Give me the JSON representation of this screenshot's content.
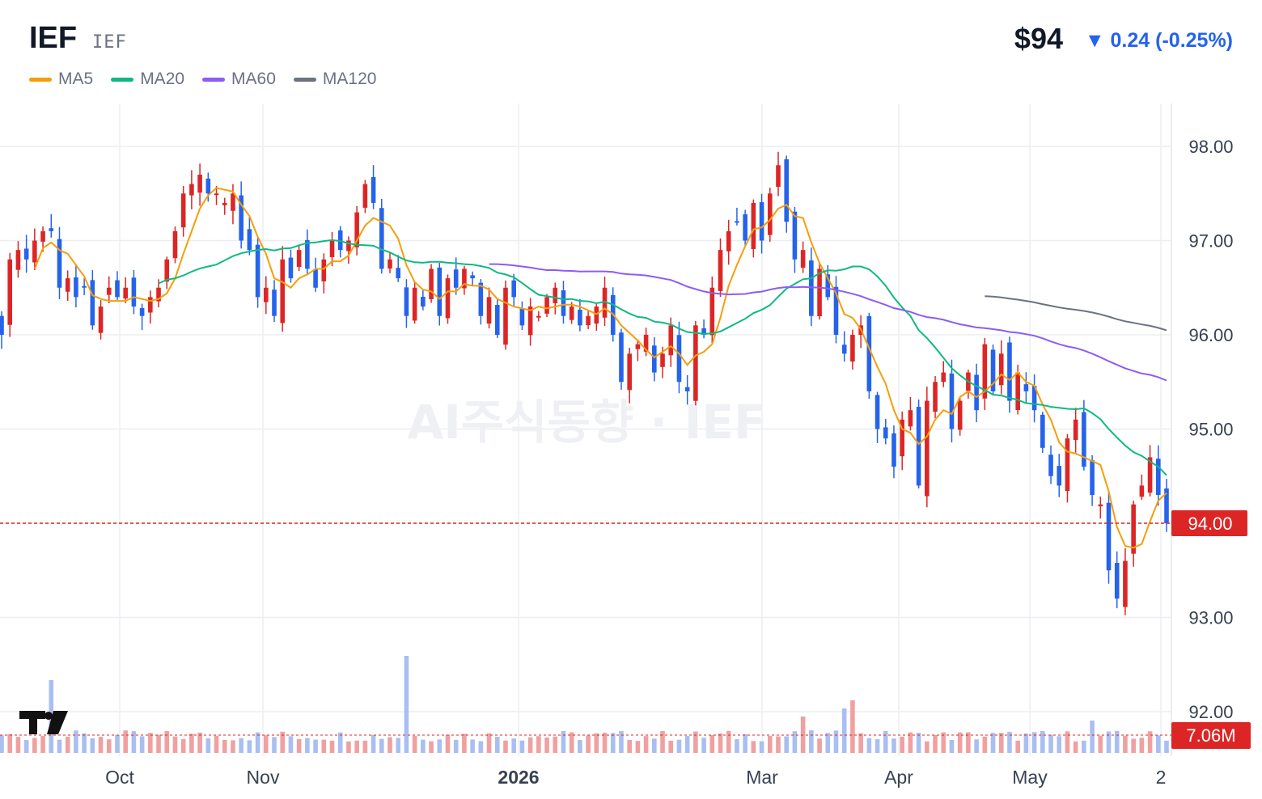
{
  "header": {
    "ticker": "IEF",
    "ticker_sub": "IEF",
    "price": "$94",
    "change": "▼ 0.24 (-0.25%)",
    "change_color": "#2563eb"
  },
  "legend": [
    {
      "label": "MA5",
      "color": "#f59e0b"
    },
    {
      "label": "MA20",
      "color": "#10b981"
    },
    {
      "label": "MA60",
      "color": "#8b5cf6"
    },
    {
      "label": "MA120",
      "color": "#6b7280"
    }
  ],
  "watermark": "AI주식동향 · IEF",
  "price_badge": "94.00",
  "volume_badge": "7.06M",
  "colors": {
    "up": "#dc2626",
    "down": "#2563eb",
    "up_vol": "#f0a0a0",
    "down_vol": "#a9bff2",
    "grid": "#eceef1"
  },
  "chart_data": {
    "type": "candlestick",
    "y_axis": {
      "min": 92,
      "max": 98,
      "ticks": [
        "92.00",
        "93.00",
        "94.00",
        "95.00",
        "96.00",
        "97.00",
        "98.00"
      ]
    },
    "x_ticks": [
      {
        "label": "Oct",
        "bold": false
      },
      {
        "label": "Nov",
        "bold": false
      },
      {
        "label": "2026",
        "bold": true
      },
      {
        "label": "Mar",
        "bold": false
      },
      {
        "label": "Apr",
        "bold": false
      },
      {
        "label": "May",
        "bold": false
      },
      {
        "label": "2",
        "bold": false
      }
    ],
    "last_price": 94.0,
    "last_volume": "7.06M",
    "close_series": [
      96.0,
      96.8,
      96.9,
      96.8,
      97.0,
      97.1,
      97.1,
      96.5,
      96.6,
      96.4,
      96.5,
      96.1,
      96.3,
      96.5,
      96.4,
      96.5,
      96.3,
      96.2,
      96.4,
      96.5,
      96.8,
      97.1,
      97.5,
      97.6,
      97.7,
      97.5,
      97.5,
      97.4,
      97.5,
      97.0,
      96.9,
      96.4,
      96.5,
      96.2,
      96.8,
      96.6,
      96.9,
      96.7,
      96.5,
      96.8,
      97.0,
      96.9,
      97.0,
      97.3,
      97.6,
      97.4,
      96.7,
      96.8,
      96.6,
      96.2,
      96.5,
      96.3,
      96.7,
      96.2,
      96.6,
      96.5,
      96.7,
      96.6,
      96.2,
      96.4,
      96.0,
      96.5,
      96.4,
      96.1,
      96.3,
      96.2,
      96.4,
      96.5,
      96.2,
      96.3,
      96.1,
      96.2,
      96.3,
      96.5,
      96.0,
      95.5,
      95.8,
      95.9,
      96.0,
      95.6,
      95.8,
      96.1,
      95.5,
      95.4,
      96.1,
      96.0,
      96.5,
      96.9,
      97.1,
      97.2,
      97.0,
      97.4,
      97.0,
      97.5,
      97.8,
      97.2,
      96.8,
      96.9,
      96.2,
      96.7,
      96.4,
      96.0,
      95.8,
      96.0,
      96.1,
      95.4,
      95.0,
      94.9,
      94.6,
      95.1,
      95.2,
      94.4,
      95.3,
      95.5,
      95.6,
      95.0,
      95.3,
      95.6,
      95.2,
      95.9,
      95.4,
      95.8,
      95.3,
      95.6,
      95.4,
      95.2,
      94.8,
      94.5,
      94.4,
      94.9,
      95.1,
      94.6,
      94.3,
      94.2,
      93.5,
      93.2,
      93.6,
      94.2,
      94.4,
      94.7,
      94.3,
      94.0
    ]
  }
}
